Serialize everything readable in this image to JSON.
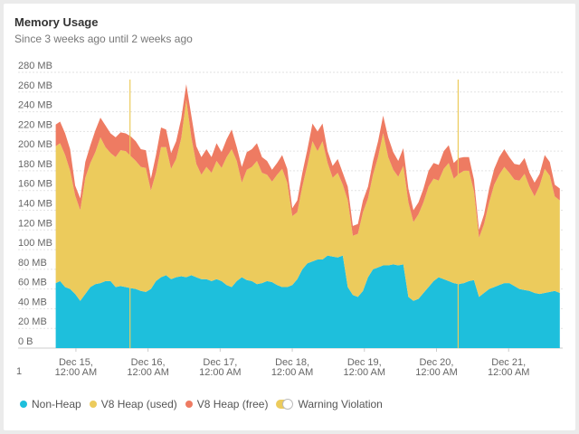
{
  "panel": {
    "title": "Memory Usage",
    "subtitle": "Since 3 weeks ago until 2 weeks ago"
  },
  "legend": {
    "items": [
      {
        "label": "Non-Heap",
        "color": "#1ebfdc",
        "icon": "dot"
      },
      {
        "label": "V8 Heap (used)",
        "color": "#eccb5c",
        "icon": "dot"
      },
      {
        "label": "V8 Heap (free)",
        "color": "#ee7b62",
        "icon": "dot"
      },
      {
        "label": "Warning Violation",
        "color": "#eccb5c",
        "icon": "toggle"
      }
    ]
  },
  "chart_data": {
    "type": "area",
    "stacked": true,
    "y_unit": "MB",
    "ylim": [
      0,
      280
    ],
    "y_ticks": [
      "0 B",
      "20 MB",
      "40 MB",
      "60 MB",
      "80 MB",
      "100 MB",
      "120 MB",
      "140 MB",
      "160 MB",
      "180 MB",
      "200 MB",
      "220 MB",
      "240 MB",
      "260 MB",
      "280 MB"
    ],
    "x_ticks": [
      {
        "day": 15.0,
        "line1": "Dec 15,",
        "line2": "12:00 AM"
      },
      {
        "day": 16.0,
        "line1": "Dec 16,",
        "line2": "12:00 AM"
      },
      {
        "day": 17.0,
        "line1": "Dec 17,",
        "line2": "12:00 AM"
      },
      {
        "day": 18.0,
        "line1": "Dec 18,",
        "line2": "12:00 AM"
      },
      {
        "day": 19.0,
        "line1": "Dec 19,",
        "line2": "12:00 AM"
      },
      {
        "day": 20.0,
        "line1": "Dec 20,",
        "line2": "12:00 AM"
      },
      {
        "day": 21.0,
        "line1": "Dec 21,",
        "line2": "12:00 AM"
      }
    ],
    "xlim": [
      14.7,
      21.75
    ],
    "corner_label": "1",
    "warning_markers": [
      15.75,
      20.3
    ],
    "grid": true,
    "x": [
      14.72,
      14.78,
      14.85,
      14.92,
      14.99,
      15.06,
      15.13,
      15.2,
      15.27,
      15.34,
      15.41,
      15.48,
      15.55,
      15.62,
      15.69,
      15.76,
      15.83,
      15.9,
      15.97,
      16.04,
      16.11,
      16.18,
      16.25,
      16.32,
      16.39,
      16.46,
      16.53,
      16.6,
      16.67,
      16.74,
      16.81,
      16.88,
      16.95,
      17.02,
      17.09,
      17.16,
      17.23,
      17.3,
      17.37,
      17.44,
      17.51,
      17.58,
      17.65,
      17.72,
      17.79,
      17.86,
      17.93,
      18.0,
      18.07,
      18.14,
      18.21,
      18.28,
      18.35,
      18.42,
      18.49,
      18.56,
      18.63,
      18.7,
      18.77,
      18.84,
      18.91,
      18.98,
      19.05,
      19.12,
      19.19,
      19.26,
      19.33,
      19.4,
      19.47,
      19.54,
      19.61,
      19.68,
      19.75,
      19.82,
      19.89,
      19.96,
      20.03,
      20.1,
      20.17,
      20.24,
      20.31,
      20.38,
      20.45,
      20.52,
      20.59,
      20.66,
      20.73,
      20.8,
      20.87,
      20.94,
      21.01,
      21.08,
      21.15,
      21.22,
      21.29,
      21.36,
      21.43,
      21.5,
      21.57,
      21.64,
      21.71
    ],
    "series": [
      {
        "name": "Non-Heap",
        "color": "#1ebfdc",
        "values": [
          66,
          68,
          62,
          60,
          55,
          48,
          55,
          62,
          65,
          66,
          68,
          68,
          62,
          63,
          62,
          61,
          60,
          58,
          57,
          60,
          68,
          72,
          74,
          70,
          72,
          73,
          72,
          74,
          72,
          70,
          70,
          68,
          70,
          68,
          64,
          62,
          68,
          72,
          69,
          68,
          65,
          66,
          68,
          67,
          64,
          62,
          62,
          64,
          70,
          80,
          86,
          88,
          90,
          90,
          94,
          93,
          92,
          94,
          62,
          54,
          52,
          58,
          72,
          80,
          82,
          84,
          84,
          85,
          84,
          85,
          52,
          48,
          50,
          56,
          62,
          68,
          72,
          70,
          68,
          66,
          65,
          66,
          68,
          69,
          52,
          56,
          60,
          62,
          64,
          66,
          66,
          63,
          60,
          59,
          58,
          56,
          55,
          56,
          57,
          58,
          56
        ]
      },
      {
        "name": "V8 Heap (used)",
        "color": "#eccb5c",
        "values": [
          139,
          140,
          134,
          120,
          100,
          92,
          118,
          126,
          134,
          148,
          136,
          130,
          132,
          138,
          138,
          134,
          130,
          126,
          126,
          100,
          110,
          132,
          130,
          112,
          120,
          140,
          180,
          140,
          115,
          106,
          114,
          110,
          120,
          115,
          130,
          140,
          122,
          96,
          112,
          116,
          125,
          112,
          108,
          102,
          112,
          120,
          106,
          70,
          68,
          84,
          100,
          122,
          110,
          120,
          94,
          80,
          86,
          72,
          88,
          60,
          64,
          80,
          80,
          96,
          112,
          134,
          110,
          96,
          90,
          100,
          96,
          80,
          86,
          92,
          102,
          104,
          98,
          112,
          120,
          106,
          112,
          114,
          112,
          90,
          60,
          70,
          88,
          104,
          112,
          118,
          112,
          108,
          110,
          118,
          106,
          98,
          110,
          126,
          118,
          96,
          94
        ]
      },
      {
        "name": "V8 Heap (free)",
        "color": "#ee7b62",
        "values": [
          22,
          22,
          22,
          22,
          10,
          12,
          16,
          18,
          22,
          20,
          22,
          20,
          20,
          18,
          18,
          20,
          20,
          18,
          18,
          12,
          18,
          20,
          18,
          16,
          18,
          20,
          16,
          22,
          18,
          18,
          18,
          16,
          18,
          16,
          18,
          20,
          14,
          16,
          18,
          18,
          18,
          16,
          14,
          12,
          12,
          14,
          14,
          8,
          12,
          14,
          16,
          18,
          20,
          18,
          12,
          12,
          14,
          12,
          14,
          10,
          10,
          12,
          12,
          14,
          16,
          18,
          20,
          18,
          16,
          18,
          14,
          12,
          12,
          14,
          16,
          16,
          16,
          18,
          18,
          16,
          16,
          14,
          14,
          12,
          8,
          10,
          14,
          16,
          18,
          18,
          16,
          16,
          16,
          16,
          14,
          14,
          12,
          14,
          14,
          12,
          12
        ]
      }
    ]
  }
}
